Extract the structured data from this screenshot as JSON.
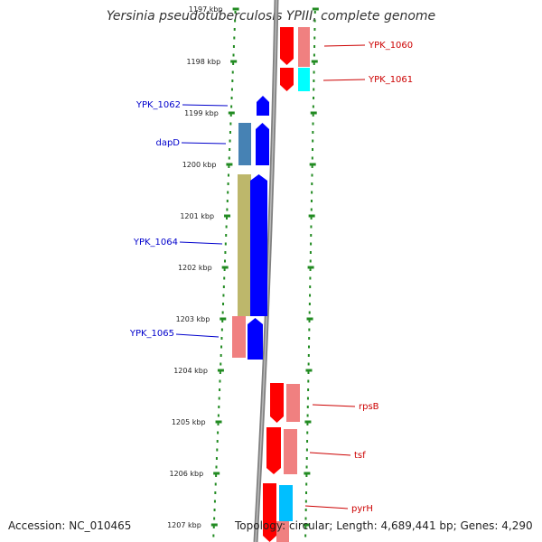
{
  "title": "Yersinia pseudotuberculosis YPIII, complete genome",
  "footer": {
    "accession": "Accession: NC_010465",
    "stats": "Topology: circular; Length: 4,689,441 bp; Genes: 4,290"
  },
  "ticks": [
    "1197 kbp",
    "1198 kbp",
    "1199 kbp",
    "1200 kbp",
    "1201 kbp",
    "1202 kbp",
    "1203 kbp",
    "1204 kbp",
    "1205 kbp",
    "1206 kbp",
    "1207 kbp"
  ],
  "genes_forward": [
    {
      "name": "YPK_1062",
      "color": "#0000ff",
      "cog_color": null
    },
    {
      "name": "dapD",
      "color": "#0000ff",
      "cog_color": "#4682b4"
    },
    {
      "name": "YPK_1064",
      "color": "#0000ff",
      "cog_color": "#bdb76b"
    },
    {
      "name": "YPK_1065",
      "color": "#0000ff",
      "cog_color": "#f08080"
    }
  ],
  "genes_reverse": [
    {
      "name": "YPK_1060",
      "color": "#ff0000",
      "cog_color": "#f08080"
    },
    {
      "name": "YPK_1061",
      "color": "#ff0000",
      "cog_color": "#00ffff"
    },
    {
      "name": "rpsB",
      "color": "#ff0000",
      "cog_color": "#f08080"
    },
    {
      "name": "tsf",
      "color": "#ff0000",
      "cog_color": "#f08080"
    },
    {
      "name": "pyrH",
      "color": "#ff0000",
      "cog_color": "#00bfff"
    }
  ],
  "colors": {
    "backbone": "#808080",
    "ticks": "#228b22",
    "forward_label": "#0000cc",
    "reverse_label": "#cc0000"
  }
}
